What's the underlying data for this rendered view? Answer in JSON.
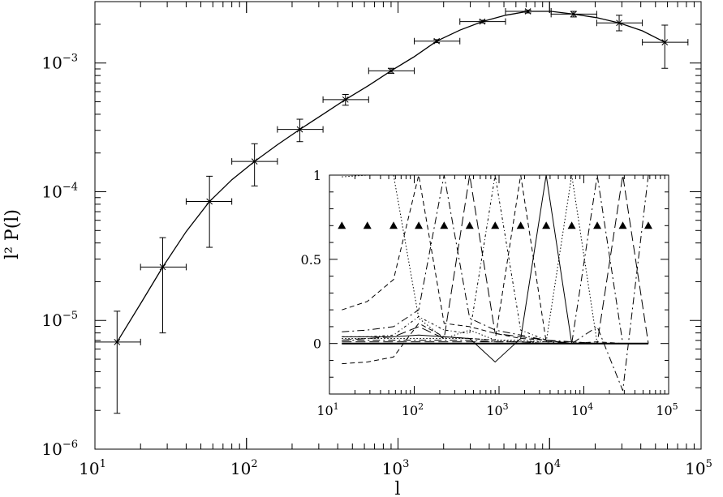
{
  "chart_data": [
    {
      "type": "line",
      "xlabel": "l",
      "ylabel": "l² P(l)",
      "xscale": "log",
      "yscale": "log",
      "xlim": [
        10,
        100000
      ],
      "ylim": [
        1e-06,
        0.003
      ],
      "x_tick_labels": [
        {
          "base": "10",
          "exp": "1"
        },
        {
          "base": "10",
          "exp": "2"
        },
        {
          "base": "10",
          "exp": "3"
        },
        {
          "base": "10",
          "exp": "4"
        },
        {
          "base": "10",
          "exp": "5"
        }
      ],
      "y_tick_labels": [
        {
          "base": "10",
          "exp": "−6"
        },
        {
          "base": "10",
          "exp": "−5"
        },
        {
          "base": "10",
          "exp": "−4"
        },
        {
          "base": "10",
          "exp": "−3"
        }
      ],
      "points": [
        {
          "x": 14,
          "y": 6.8e-06,
          "xlo": 10,
          "xhi": 20,
          "ylo": 1.9e-06,
          "yhi": 1.18e-05
        },
        {
          "x": 28,
          "y": 2.6e-05,
          "xlo": 20,
          "xhi": 40,
          "ylo": 8e-06,
          "yhi": 4.4e-05
        },
        {
          "x": 57,
          "y": 8.4e-05,
          "xlo": 40,
          "xhi": 80,
          "ylo": 3.7e-05,
          "yhi": 0.000132
        },
        {
          "x": 113,
          "y": 0.000172,
          "xlo": 80,
          "xhi": 160,
          "ylo": 0.000111,
          "yhi": 0.000236
        },
        {
          "x": 225,
          "y": 0.000305,
          "xlo": 160,
          "xhi": 320,
          "ylo": 0.000245,
          "yhi": 0.000366
        },
        {
          "x": 450,
          "y": 0.00052,
          "xlo": 320,
          "xhi": 640,
          "ylo": 0.00047,
          "yhi": 0.00057
        },
        {
          "x": 900,
          "y": 0.00087,
          "xlo": 640,
          "xhi": 1280,
          "ylo": 0.00083,
          "yhi": 0.00091
        },
        {
          "x": 1800,
          "y": 0.00148,
          "xlo": 1280,
          "xhi": 2560,
          "ylo": 0.00144,
          "yhi": 0.00152
        },
        {
          "x": 3600,
          "y": 0.0021,
          "xlo": 2560,
          "xhi": 5120,
          "ylo": 0.00205,
          "yhi": 0.00215
        },
        {
          "x": 7200,
          "y": 0.00252,
          "xlo": 5120,
          "xhi": 10240,
          "ylo": 0.00245,
          "yhi": 0.00258
        },
        {
          "x": 14400,
          "y": 0.0024,
          "xlo": 10240,
          "xhi": 20480,
          "ylo": 0.00228,
          "yhi": 0.00252
        },
        {
          "x": 28800,
          "y": 0.00205,
          "xlo": 20480,
          "xhi": 40960,
          "ylo": 0.00178,
          "yhi": 0.00235
        },
        {
          "x": 57600,
          "y": 0.00145,
          "xlo": 40960,
          "xhi": 81920,
          "ylo": 0.00091,
          "yhi": 0.00197
        }
      ],
      "curve": [
        [
          14,
          6.8e-06
        ],
        [
          20,
          1.35e-05
        ],
        [
          28,
          2.6e-05
        ],
        [
          40,
          4.9e-05
        ],
        [
          57,
          8.4e-05
        ],
        [
          80,
          0.000124
        ],
        [
          113,
          0.000172
        ],
        [
          160,
          0.000232
        ],
        [
          225,
          0.000305
        ],
        [
          320,
          0.0004
        ],
        [
          450,
          0.00052
        ],
        [
          640,
          0.00067
        ],
        [
          900,
          0.00087
        ],
        [
          1280,
          0.00112
        ],
        [
          1800,
          0.00148
        ],
        [
          2560,
          0.0018
        ],
        [
          3600,
          0.0021
        ],
        [
          5120,
          0.00235
        ],
        [
          7200,
          0.00252
        ],
        [
          10240,
          0.00252
        ],
        [
          14400,
          0.0024
        ],
        [
          20480,
          0.00225
        ],
        [
          28800,
          0.00205
        ],
        [
          40960,
          0.00178
        ],
        [
          57600,
          0.00145
        ]
      ]
    },
    {
      "type": "line",
      "subtype": "inset",
      "xscale": "log",
      "xlim": [
        10,
        100000
      ],
      "ylim": [
        -0.3,
        1.0
      ],
      "x_tick_labels": [
        {
          "base": "10",
          "exp": "1"
        },
        {
          "base": "10",
          "exp": "2"
        },
        {
          "base": "10",
          "exp": "3"
        },
        {
          "base": "10",
          "exp": "4"
        },
        {
          "base": "10",
          "exp": "5"
        }
      ],
      "y_tick_labels": [
        "0",
        "0.5",
        "1"
      ],
      "triangle_marker_y": 0.7,
      "triangle_marker_x": [
        14,
        28,
        57,
        113,
        225,
        450,
        900,
        1800,
        3600,
        7200,
        14400,
        28800,
        57600
      ],
      "series_x": [
        14,
        28,
        57,
        113,
        225,
        450,
        900,
        1800,
        3600,
        7200,
        14400,
        28800,
        57600
      ],
      "series": [
        {
          "style": "dotted",
          "values": [
            0.99,
            1.0,
            1.0,
            0.15,
            0.03,
            0.08,
            0.02,
            0.01,
            0.0,
            0.0,
            0.0,
            0.0,
            0.0
          ]
        },
        {
          "style": "dashed",
          "values": [
            0.2,
            0.25,
            0.38,
            1.0,
            0.12,
            0.1,
            0.06,
            0.03,
            0.02,
            0.0,
            0.01,
            0.0,
            0.0
          ]
        },
        {
          "style": "dashdot",
          "values": [
            0.07,
            0.08,
            0.1,
            0.2,
            1.0,
            0.15,
            0.08,
            0.05,
            0.02,
            0.01,
            0.0,
            0.0,
            0.0
          ]
        },
        {
          "style": "longdash",
          "values": [
            0.02,
            0.03,
            0.04,
            0.1,
            0.03,
            1.0,
            0.06,
            0.04,
            0.02,
            0.0,
            0.0,
            0.0,
            0.0
          ]
        },
        {
          "style": "dotdash",
          "values": [
            0.04,
            0.04,
            0.05,
            0.16,
            0.08,
            0.06,
            1.0,
            0.08,
            0.02,
            0.0,
            0.0,
            0.0,
            0.0
          ]
        },
        {
          "style": "dashed",
          "values": [
            -0.12,
            -0.11,
            -0.08,
            0.12,
            0.04,
            0.03,
            0.02,
            1.0,
            0.01,
            0.01,
            0.0,
            0.0,
            0.0
          ]
        },
        {
          "style": "solid",
          "values": [
            0.04,
            0.04,
            0.04,
            0.05,
            0.04,
            0.03,
            -0.11,
            0.03,
            1.0,
            0.0,
            0.0,
            0.0,
            0.0
          ]
        },
        {
          "style": "dotted",
          "values": [
            0.03,
            0.03,
            0.03,
            0.03,
            0.03,
            0.03,
            0.02,
            0.02,
            0.01,
            1.0,
            0.0,
            0.0,
            0.0
          ]
        },
        {
          "style": "dashdot",
          "values": [
            0.02,
            0.02,
            0.02,
            0.02,
            0.02,
            0.02,
            0.01,
            0.01,
            0.01,
            0.0,
            1.0,
            0.0,
            0.0
          ]
        },
        {
          "style": "longdash",
          "values": [
            0.01,
            0.01,
            0.01,
            0.01,
            0.01,
            0.01,
            0.01,
            0.01,
            0.0,
            0.0,
            0.0,
            1.0,
            0.0
          ]
        },
        {
          "style": "dashdot",
          "values": [
            0.0,
            0.0,
            0.0,
            0.0,
            0.0,
            0.0,
            0.0,
            0.0,
            0.0,
            0.0,
            0.1,
            -0.28,
            1.0
          ]
        },
        {
          "style": "solid",
          "values": [
            0.0,
            0.0,
            0.0,
            0.0,
            0.0,
            0.0,
            0.0,
            0.0,
            0.0,
            0.0,
            0.0,
            0.0,
            0.0
          ]
        }
      ]
    }
  ]
}
